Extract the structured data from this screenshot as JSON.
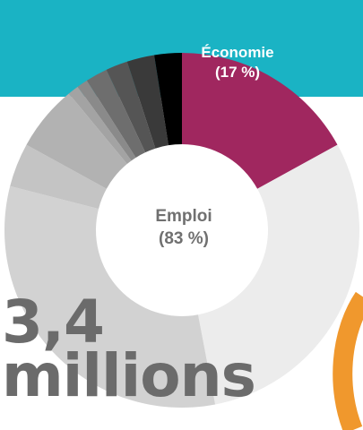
{
  "chart_data": {
    "type": "pie",
    "labels": [
      "Économie",
      "Emploi"
    ],
    "values": [
      17,
      83
    ],
    "data_labels": {
      "economie_name": "Économie",
      "economie_pct": "(17 %)",
      "emploi_name": "Emploi",
      "emploi_pct": "(83 %)"
    },
    "colors": {
      "economie": "#a0275f",
      "emploi_shades": [
        "#ececec",
        "#d2d2d2",
        "#c4c4c4",
        "#b2b2b2",
        "#a3a3a3",
        "#8a8a8a",
        "#6e6e6e",
        "#555555",
        "#3a3a3a",
        "#000000"
      ]
    },
    "emploi_subsegments_pct": [
      30,
      32,
      4,
      6,
      1,
      1,
      2,
      2,
      2.5,
      2.5
    ]
  },
  "headline": {
    "line1": "3,4",
    "line2": "millions"
  },
  "colors": {
    "band": "#1ab3c4",
    "headline": "#6b6b6b",
    "accent_orange": "#f0982d"
  }
}
